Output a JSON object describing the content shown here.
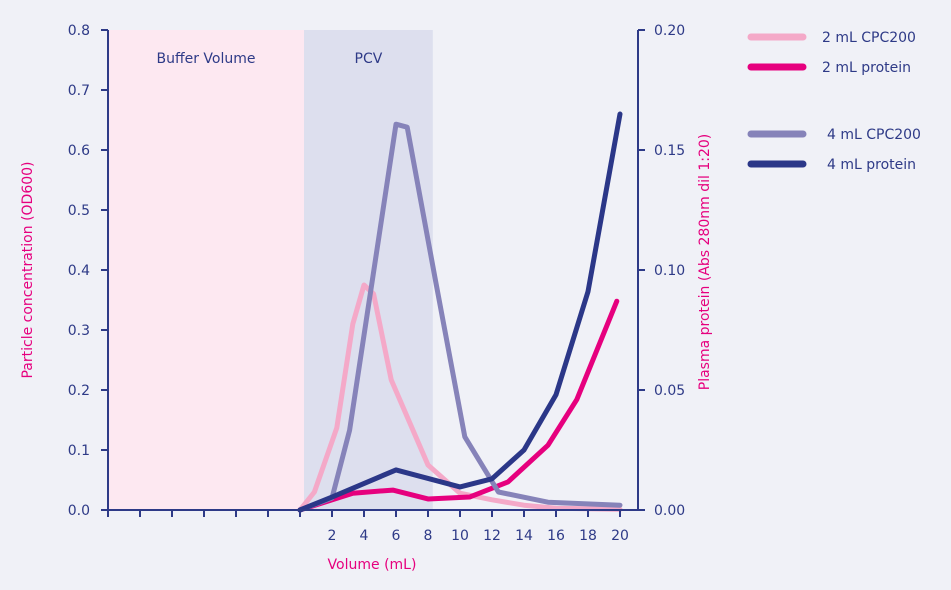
{
  "chart_data": {
    "type": "line",
    "xlabel": "Volume (mL)",
    "ylabel_left": "Particle concentration (OD600)",
    "ylabel_right": "Plasma protein (Abs 280nm dil 1:20)",
    "x_range": [
      -12,
      20
    ],
    "x_ticks": [
      -12,
      -10,
      -8,
      -6,
      -4,
      -2,
      0,
      2,
      4,
      6,
      8,
      10,
      12,
      14,
      16,
      18,
      20
    ],
    "x_tick_labels": [
      "",
      "",
      "",
      "",
      "",
      "",
      "",
      "2",
      "4",
      "6",
      "8",
      "10",
      "12",
      "14",
      "16",
      "18",
      "20"
    ],
    "ylim_left": [
      0,
      0.8
    ],
    "yticks_left": [
      "0.0",
      "0.1",
      "0.2",
      "0.3",
      "0.4",
      "0.5",
      "0.6",
      "0.7",
      "0.8"
    ],
    "ylim_right": [
      0,
      0.2
    ],
    "yticks_right": [
      "0.00",
      "0.05",
      "0.10",
      "0.15",
      "0.20"
    ],
    "grid": false,
    "legend_position": "top-right",
    "regions": [
      {
        "label": "Buffer Volume",
        "x_start": -12,
        "x_end": 0.25,
        "color": "#fde8f1"
      },
      {
        "label": "PCV",
        "x_start": 0.25,
        "x_end": 8.3,
        "color": "#dddfee"
      }
    ],
    "series": [
      {
        "name": "2 mL CPC200",
        "axis": "left",
        "color": "#f4a9c8",
        "x": [
          0,
          0.9,
          2.3,
          3.3,
          4,
          4.6,
          5.7,
          8,
          10,
          12,
          14,
          16,
          18,
          20
        ],
        "y": [
          0,
          0.03,
          0.137,
          0.31,
          0.375,
          0.36,
          0.217,
          0.075,
          0.028,
          0.017,
          0.008,
          0.003,
          0.002,
          0.001
        ]
      },
      {
        "name": "2 mL protein",
        "axis": "right",
        "color": "#e6007e",
        "x": [
          0,
          3.3,
          5.8,
          8,
          10.6,
          13,
          15.5,
          17.3,
          19.8
        ],
        "y": [
          0,
          0.007,
          0.0083,
          0.0046,
          0.0054,
          0.0117,
          0.027,
          0.046,
          0.087
        ]
      },
      {
        "name": "4 mL CPC200",
        "axis": "left",
        "color": "#8683b9",
        "x": [
          0,
          2,
          3.1,
          6,
          6.7,
          8.5,
          10.3,
          12.4,
          15.5,
          20
        ],
        "y": [
          0,
          0.02,
          0.133,
          0.643,
          0.638,
          0.378,
          0.122,
          0.03,
          0.013,
          0.008
        ]
      },
      {
        "name": "4 mL protein",
        "axis": "right",
        "color": "#2b3788",
        "x": [
          0,
          2,
          6,
          10,
          12,
          14,
          16,
          18,
          20
        ],
        "y": [
          0,
          0.0054,
          0.0167,
          0.0096,
          0.013,
          0.025,
          0.048,
          0.091,
          0.165
        ]
      }
    ]
  }
}
